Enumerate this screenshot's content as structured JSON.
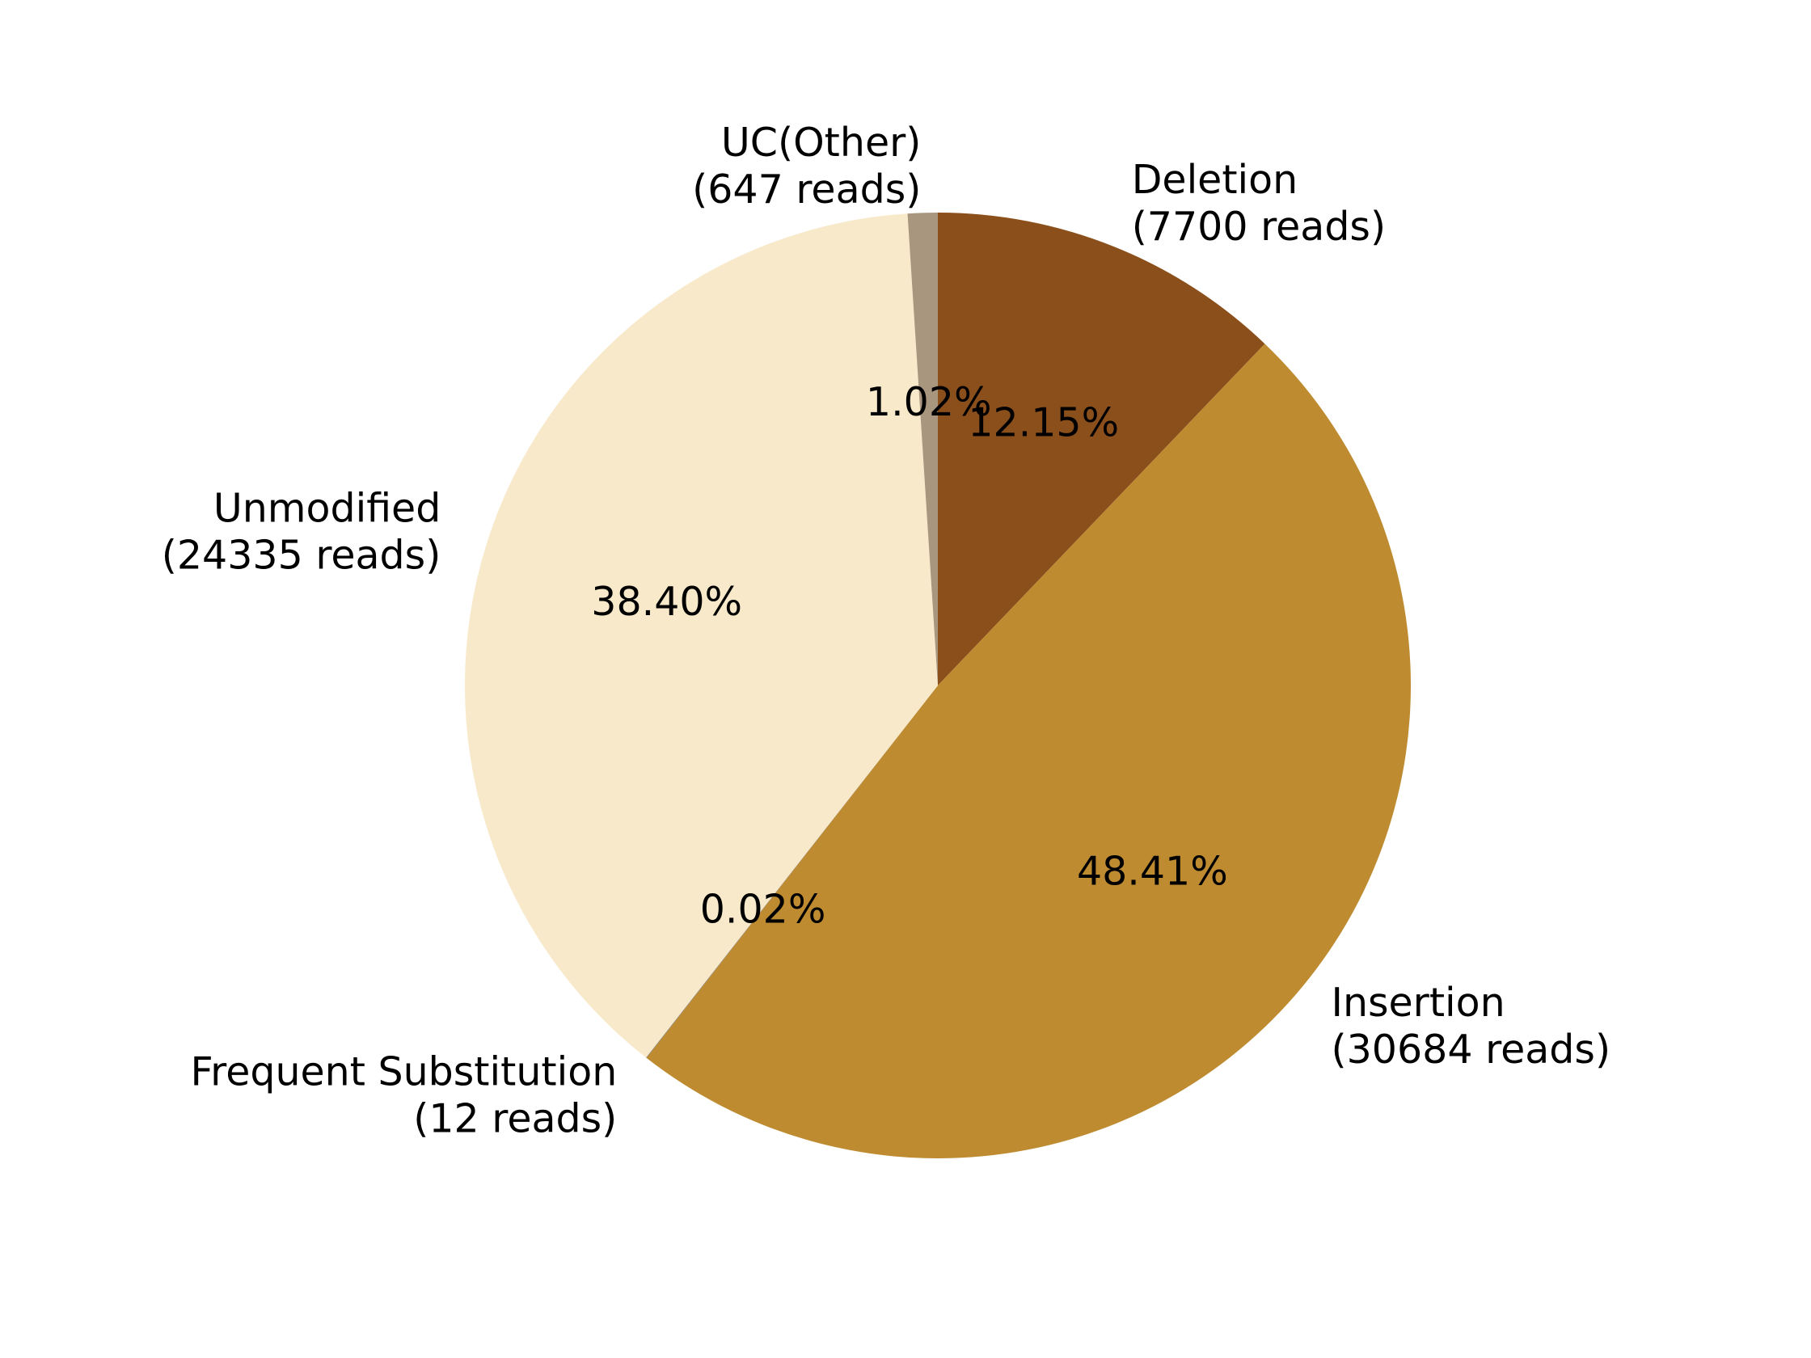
{
  "chart_data": {
    "type": "pie",
    "title": "",
    "slices": [
      {
        "label": "Deletion",
        "reads_text": "(7700 reads)",
        "reads": 7700,
        "percent": 12.15,
        "percent_text": "12.15%",
        "color": "#8b4f1b"
      },
      {
        "label": "Insertion",
        "reads_text": "(30684 reads)",
        "reads": 30684,
        "percent": 48.41,
        "percent_text": "48.41%",
        "color": "#be8b31"
      },
      {
        "label": "Frequent Substitution",
        "reads_text": "(12 reads)",
        "reads": 12,
        "percent": 0.02,
        "percent_text": "0.02%",
        "color": "#7a7a7a"
      },
      {
        "label": "Unmodified",
        "reads_text": "(24335 reads)",
        "reads": 24335,
        "percent": 38.4,
        "percent_text": "38.40%",
        "color": "#f7e9c9"
      },
      {
        "label": "UC(Other)",
        "reads_text": "(647 reads)",
        "reads": 647,
        "percent": 1.02,
        "percent_text": "1.02%",
        "color": "#a8967e"
      }
    ],
    "start_angle": "top",
    "direction": "clockwise",
    "legend": "none"
  }
}
